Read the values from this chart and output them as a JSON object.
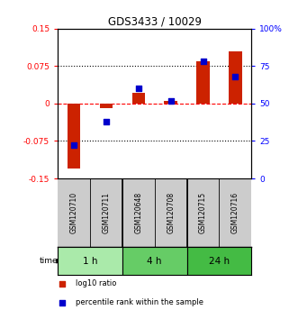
{
  "title": "GDS3433 / 10029",
  "samples": [
    "GSM120710",
    "GSM120711",
    "GSM120648",
    "GSM120708",
    "GSM120715",
    "GSM120716"
  ],
  "log10_ratio": [
    -0.13,
    -0.01,
    0.022,
    0.005,
    0.085,
    0.105
  ],
  "percentile_rank": [
    22,
    38,
    60,
    52,
    78,
    68
  ],
  "groups": [
    {
      "label": "1 h",
      "indices": [
        0,
        1
      ],
      "color": "#aaeaaa"
    },
    {
      "label": "4 h",
      "indices": [
        2,
        3
      ],
      "color": "#66cc66"
    },
    {
      "label": "24 h",
      "indices": [
        4,
        5
      ],
      "color": "#44bb44"
    }
  ],
  "ylim_left": [
    -0.15,
    0.15
  ],
  "ylim_right": [
    0,
    100
  ],
  "yticks_left": [
    -0.15,
    -0.075,
    0,
    0.075,
    0.15
  ],
  "yticks_right": [
    0,
    25,
    50,
    75,
    100
  ],
  "ytick_labels_left": [
    "-0.15",
    "-0.075",
    "0",
    "0.075",
    "0.15"
  ],
  "ytick_labels_right": [
    "0",
    "25",
    "50",
    "75",
    "100%"
  ],
  "bar_color": "#cc2200",
  "dot_color": "#0000cc",
  "background_color": "#ffffff",
  "sample_bg": "#cccccc",
  "legend_log10": "log10 ratio",
  "legend_pct": "percentile rank within the sample"
}
